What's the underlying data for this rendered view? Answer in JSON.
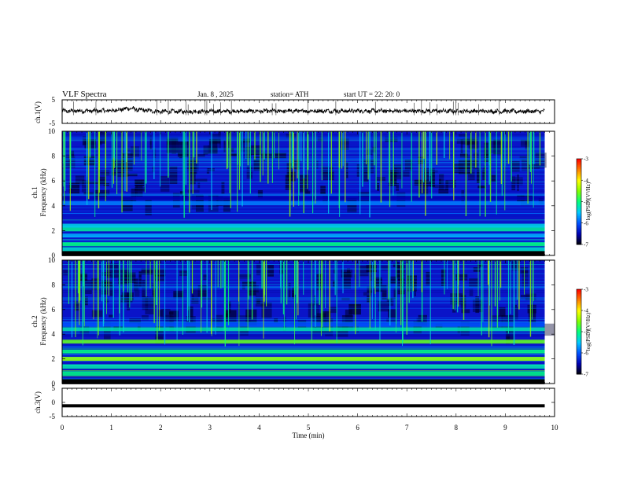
{
  "header": {
    "title": "VLF  Spectra",
    "date": "Jan.  8  , 2025",
    "station": "station= ATH",
    "start": "start  UT  =   22: 20: 0"
  },
  "colors": {
    "background": "#ffffff",
    "axis": "#000000",
    "spectrogram_base": "#0a14c8",
    "colormap": [
      "#000000",
      "#0000b0",
      "#0050ff",
      "#00c8ff",
      "#00ff80",
      "#80ff00",
      "#ffff00",
      "#ff8000",
      "#ff0000",
      "#ffffff"
    ]
  },
  "chart_data": [
    {
      "type": "line",
      "name": "ch1-waveform",
      "ylabel": "ch.1(V)",
      "ylim": [
        -5,
        5
      ],
      "yticks": [
        "5",
        "-5"
      ],
      "approx_level": 0.2,
      "description_points": [
        {
          "t": 0,
          "v": 0.2
        },
        {
          "t": 1.0,
          "v": 0.4
        },
        {
          "t": 1.4,
          "v": 1.5
        },
        {
          "t": 1.5,
          "v": 0.8
        },
        {
          "t": 2.0,
          "v": 0.0
        },
        {
          "t": 4.0,
          "v": 0.2
        },
        {
          "t": 6.0,
          "v": 0.3
        },
        {
          "t": 8.0,
          "v": 0.2
        },
        {
          "t": 9.8,
          "v": 0.1
        }
      ]
    },
    {
      "type": "heatmap",
      "name": "ch1-spectrogram",
      "ylabel": "ch.1",
      "ylabel2": "Frequency  (kHz)",
      "ylim": [
        0,
        10
      ],
      "yticks": [
        "0",
        "2",
        "4",
        "6",
        "8",
        "10"
      ],
      "colorbar": {
        "label": "log(PSD)(V²/Hz)",
        "ticks": [
          "-3",
          "-4",
          "-5",
          "-6",
          "-7"
        ],
        "range": [
          -7,
          -3
        ]
      },
      "bands_khz": [
        {
          "f": 0.1,
          "level": -7
        },
        {
          "f": 0.5,
          "level": -5.3
        },
        {
          "f": 0.9,
          "level": -5.0
        },
        {
          "f": 1.6,
          "level": -5.6
        },
        {
          "f": 2.1,
          "level": -5.1
        },
        {
          "f": 2.4,
          "level": -5.4
        },
        {
          "f": 4.2,
          "level": -5.8
        },
        {
          "f": 4.6,
          "level": -6.5
        }
      ]
    },
    {
      "type": "heatmap",
      "name": "ch2-spectrogram",
      "ylabel": "ch.2",
      "ylabel2": "Frequency  (kHz)",
      "ylim": [
        0,
        10
      ],
      "yticks": [
        "0",
        "2",
        "4",
        "6",
        "8",
        "10"
      ],
      "colorbar": {
        "label": "log(PSD)(V²/Hz)",
        "ticks": [
          "-3",
          "-4",
          "-5",
          "-6",
          "-7"
        ],
        "range": [
          -7,
          -3
        ]
      },
      "bands_khz": [
        {
          "f": 0.1,
          "level": -7
        },
        {
          "f": 0.8,
          "level": -5.0
        },
        {
          "f": 1.4,
          "level": -5.2
        },
        {
          "f": 2.0,
          "level": -4.4
        },
        {
          "f": 2.6,
          "level": -5.0
        },
        {
          "f": 3.4,
          "level": -4.6
        },
        {
          "f": 4.4,
          "level": -5.2
        },
        {
          "f": 4.8,
          "level": -6.0
        }
      ]
    },
    {
      "type": "line",
      "name": "ch3-waveform",
      "ylabel": "ch.3(V)",
      "ylim": [
        -5,
        5
      ],
      "yticks": [
        "5",
        "0",
        "-5"
      ],
      "approx_level": -1.2
    }
  ],
  "xaxis": {
    "label": "Time  (min)",
    "range": [
      0,
      10
    ],
    "data_end": 9.8,
    "ticks": [
      "0",
      "1",
      "2",
      "3",
      "4",
      "5",
      "6",
      "7",
      "8",
      "9",
      "10"
    ]
  }
}
